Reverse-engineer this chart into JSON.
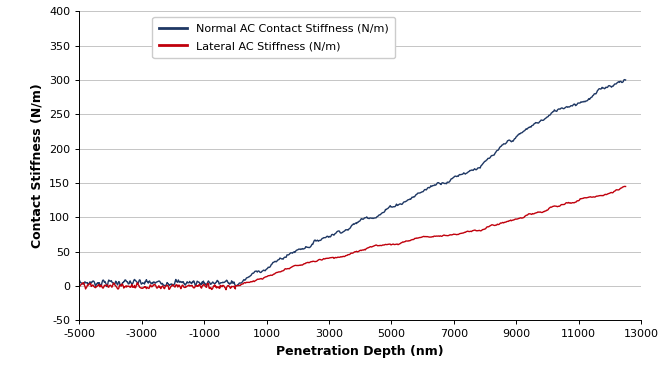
{
  "xlabel": "Penetration Depth (nm)",
  "ylabel": "Contact Stiffness (N/m)",
  "xlim": [
    -5000,
    13000
  ],
  "ylim": [
    -50,
    400
  ],
  "xticks": [
    -5000,
    -3000,
    -1000,
    1000,
    3000,
    5000,
    7000,
    9000,
    11000,
    13000
  ],
  "yticks": [
    -50,
    0,
    50,
    100,
    150,
    200,
    250,
    300,
    350,
    400
  ],
  "blue_color": "#1F3864",
  "red_color": "#C0000C",
  "legend_labels": [
    "Normal AC Contact Stiffness (N/m)",
    "Lateral AC Stiffness (N/m)"
  ],
  "background_color": "#FFFFFF",
  "grid_color": "#BBBBBB",
  "blue_max": 300,
  "red_max": 145,
  "pre_n": 250,
  "post_n": 500,
  "pre_noise_std": 4,
  "post_noise_std_blue": 6,
  "post_noise_std_red": 5,
  "figwidth": 6.61,
  "figheight": 3.77,
  "dpi": 100
}
